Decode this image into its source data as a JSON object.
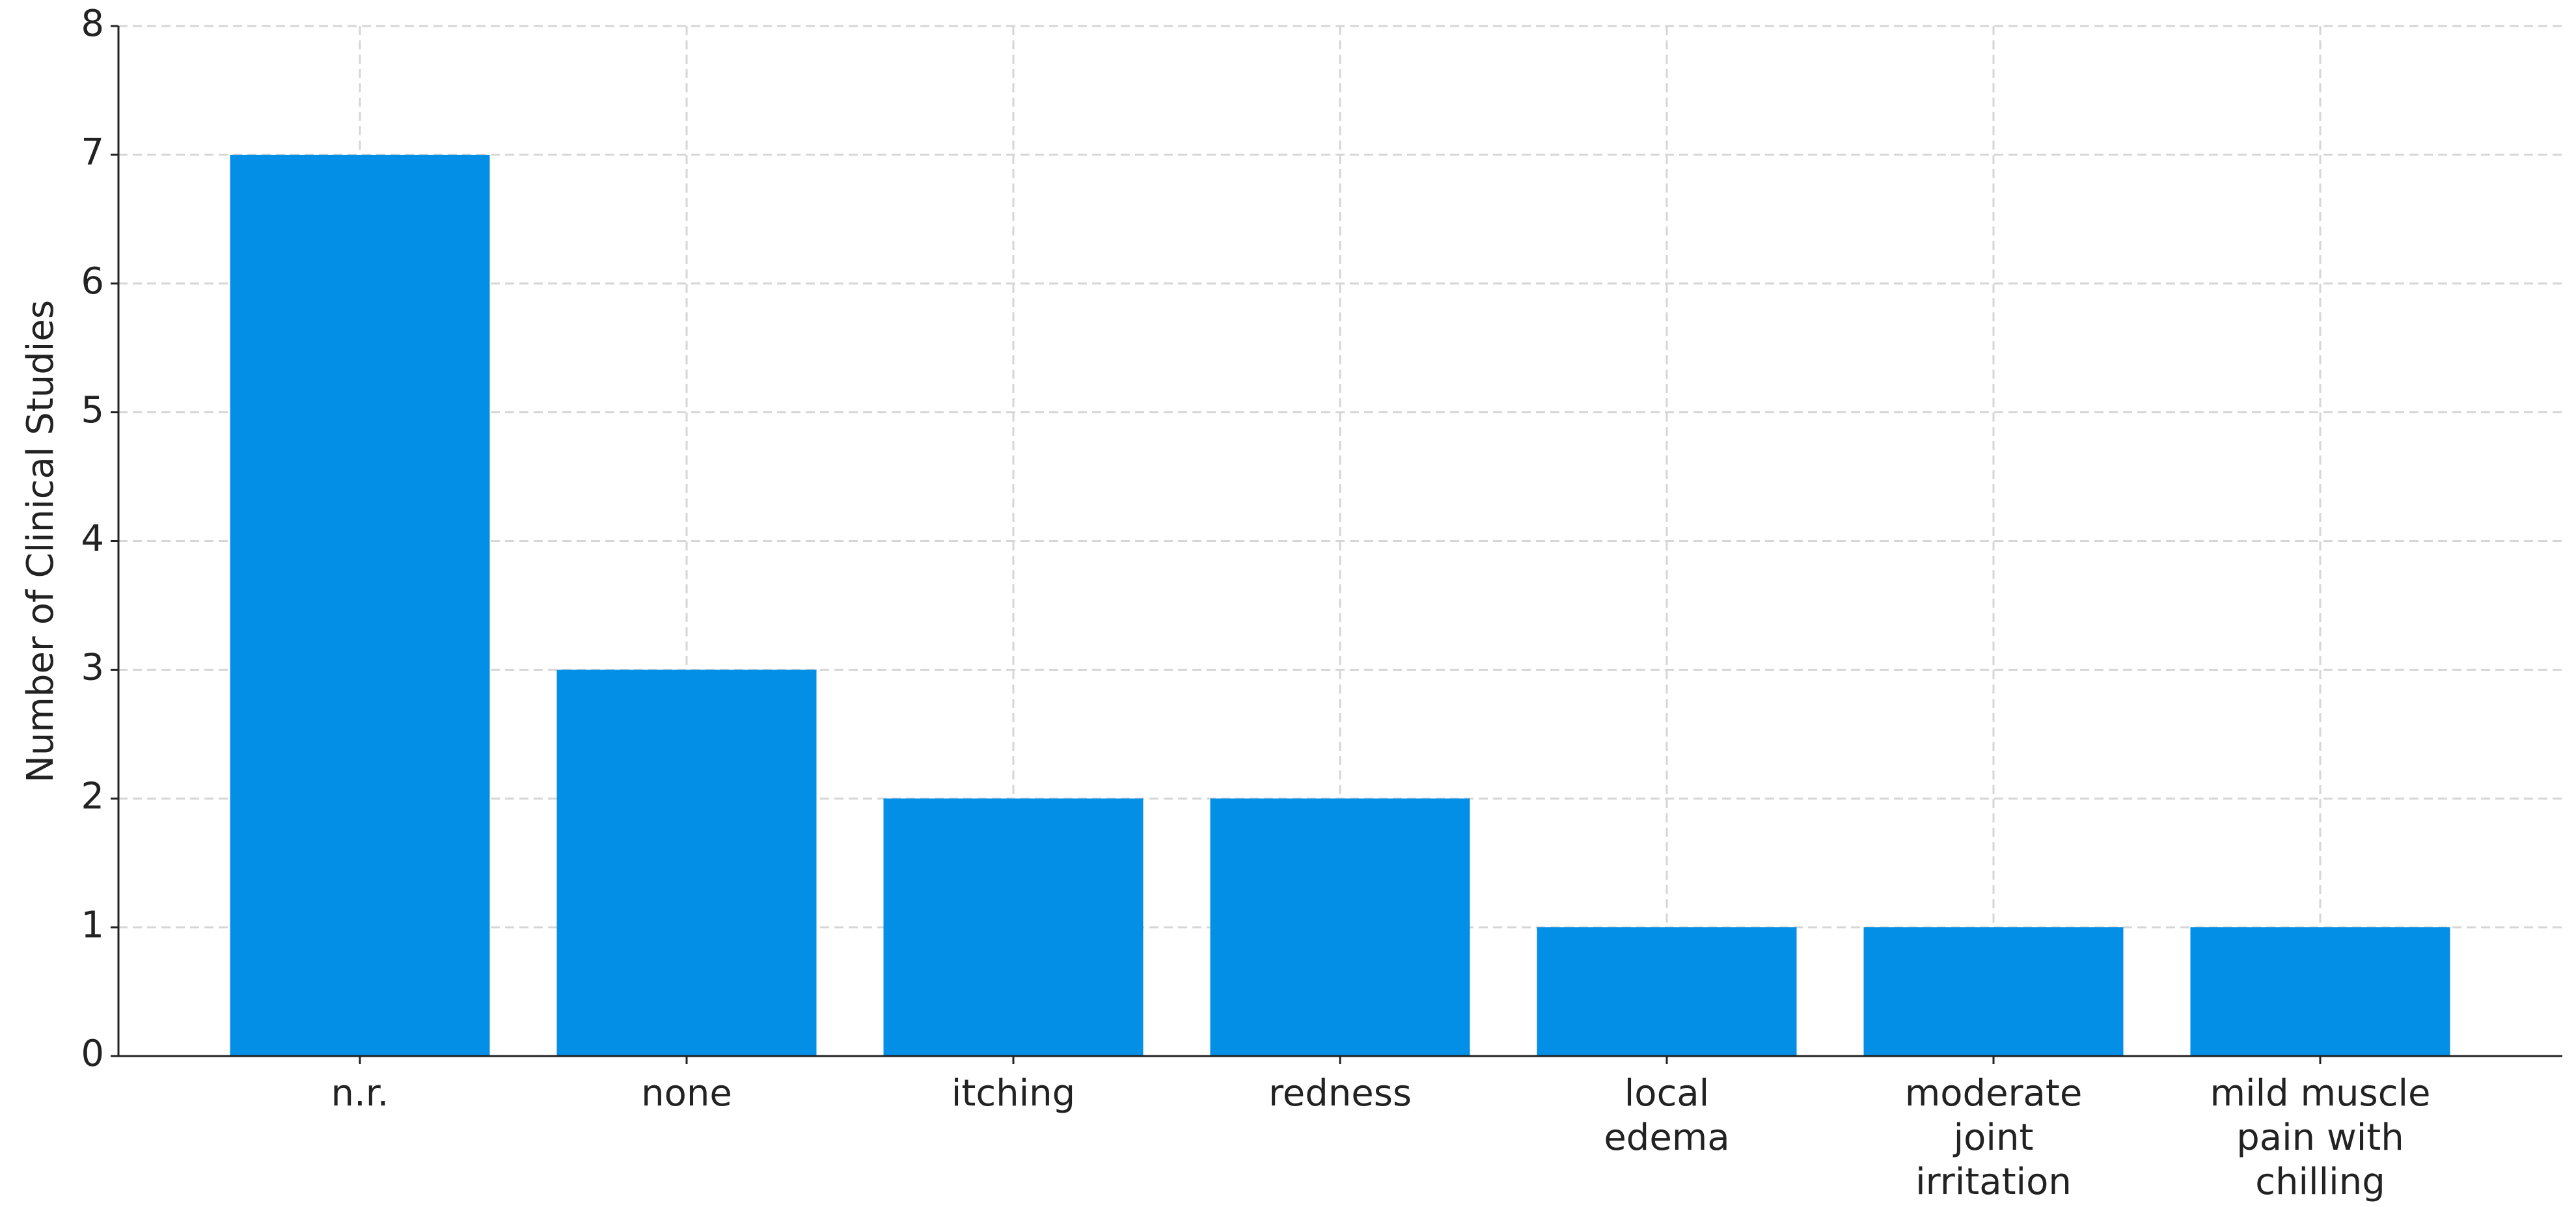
{
  "chart_data": {
    "type": "bar",
    "y_label": "Number of Clinical Studies",
    "categories": [
      "n.r.",
      "none",
      "itching",
      "redness",
      "local\nedema",
      "moderate\njoint\nirritation",
      "mild muscle\npain with\nchilling"
    ],
    "values": [
      7,
      3,
      2,
      2,
      1,
      1,
      1
    ],
    "color": "#038fe6",
    "ylim": [
      0,
      8
    ],
    "yticks": [
      0,
      1,
      2,
      3,
      4,
      5,
      6,
      7,
      8
    ],
    "grid": true
  }
}
